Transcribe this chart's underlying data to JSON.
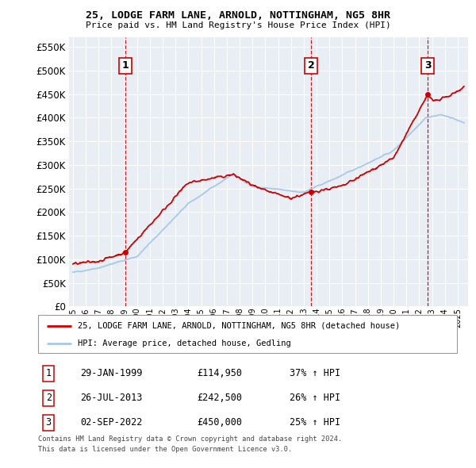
{
  "title": "25, LODGE FARM LANE, ARNOLD, NOTTINGHAM, NG5 8HR",
  "subtitle": "Price paid vs. HM Land Registry's House Price Index (HPI)",
  "legend_line1": "25, LODGE FARM LANE, ARNOLD, NOTTINGHAM, NG5 8HR (detached house)",
  "legend_line2": "HPI: Average price, detached house, Gedling",
  "footer1": "Contains HM Land Registry data © Crown copyright and database right 2024.",
  "footer2": "This data is licensed under the Open Government Licence v3.0.",
  "sales": [
    {
      "num": 1,
      "date": "29-JAN-1999",
      "price": 114950,
      "pct": "37% ↑ HPI",
      "year": 1999.08
    },
    {
      "num": 2,
      "date": "26-JUL-2013",
      "price": 242500,
      "pct": "26% ↑ HPI",
      "year": 2013.57
    },
    {
      "num": 3,
      "date": "02-SEP-2022",
      "price": 450000,
      "pct": "25% ↑ HPI",
      "year": 2022.67
    }
  ],
  "hpi_color": "#a8c8e8",
  "price_color": "#cc0000",
  "dashed_color": "#cc0000",
  "bg_color": "#e8eef4",
  "grid_color": "#ffffff",
  "ylim": [
    0,
    570000
  ],
  "xlim_start": 1994.7,
  "xlim_end": 2025.8,
  "yticks": [
    0,
    50000,
    100000,
    150000,
    200000,
    250000,
    300000,
    350000,
    400000,
    450000,
    500000,
    550000
  ],
  "xtick_years": [
    1995,
    1996,
    1997,
    1998,
    1999,
    2000,
    2001,
    2002,
    2003,
    2004,
    2005,
    2006,
    2007,
    2008,
    2009,
    2010,
    2011,
    2012,
    2013,
    2014,
    2015,
    2016,
    2017,
    2018,
    2019,
    2020,
    2021,
    2022,
    2023,
    2024,
    2025
  ]
}
